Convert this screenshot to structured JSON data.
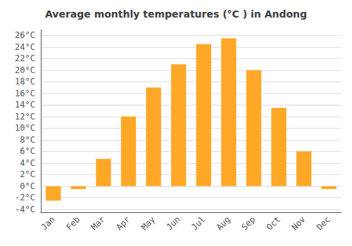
{
  "chart_data": {
    "type": "bar",
    "title": "Average monthly temperatures (°C ) in Andong",
    "categories": [
      "Jan",
      "Feb",
      "Mar",
      "Apr",
      "May",
      "Jun",
      "Jul",
      "Aug",
      "Sep",
      "Oct",
      "Nov",
      "Dec"
    ],
    "values": [
      -2.5,
      -0.5,
      4.7,
      12.0,
      17.0,
      21.0,
      24.5,
      25.5,
      20.0,
      13.5,
      6.0,
      -0.5
    ],
    "color": "#FFA726",
    "ylim": [
      -4.5,
      27
    ],
    "yticks": [
      {
        "value": -4,
        "label": "-4°C"
      },
      {
        "value": -2,
        "label": "-2°C"
      },
      {
        "value": 0,
        "label": "0°C"
      },
      {
        "value": 2,
        "label": "2°C"
      },
      {
        "value": 4,
        "label": "4°C"
      },
      {
        "value": 6,
        "label": "6°C"
      },
      {
        "value": 8,
        "label": "8°C"
      },
      {
        "value": 10,
        "label": "10°C"
      },
      {
        "value": 12,
        "label": "12°C"
      },
      {
        "value": 14,
        "label": "14°C"
      },
      {
        "value": 16,
        "label": "16°C"
      },
      {
        "value": 18,
        "label": "18°C"
      },
      {
        "value": 20,
        "label": "20°C"
      },
      {
        "value": 22,
        "label": "22°C"
      },
      {
        "value": 24,
        "label": "24°C"
      },
      {
        "value": 26,
        "label": "26°C"
      }
    ],
    "grid": true
  }
}
